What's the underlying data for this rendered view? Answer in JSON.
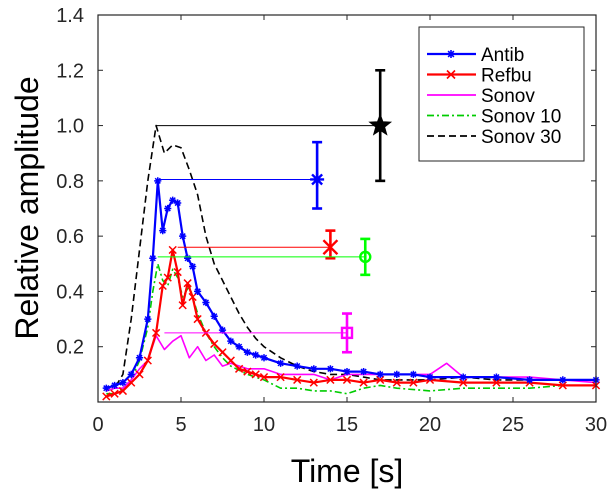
{
  "chart_data": {
    "type": "line",
    "xlabel": "Time [s]",
    "ylabel": "Relative amplitude",
    "xlim": [
      0,
      30
    ],
    "ylim": [
      0,
      1.4
    ],
    "xticks": [
      0,
      5,
      10,
      15,
      20,
      25,
      30
    ],
    "yticks": [
      0.2,
      0.4,
      0.6,
      0.8,
      1.0,
      1.2,
      1.4
    ],
    "xtick_labels": [
      "0",
      "5",
      "10",
      "15",
      "20",
      "25",
      "30"
    ],
    "ytick_labels": [
      "0.2",
      "0.4",
      "0.6",
      "0.8",
      "1.0",
      "1.2",
      "1.4"
    ],
    "grid": false,
    "legend_position": "top-right",
    "series": [
      {
        "name": "Antib",
        "color": "#0000ff",
        "style": "solid",
        "marker": "asterisk",
        "x": [
          0.5,
          1.0,
          1.5,
          2.0,
          2.5,
          3.0,
          3.3,
          3.6,
          3.9,
          4.2,
          4.5,
          4.8,
          5.1,
          5.4,
          5.7,
          6.0,
          6.5,
          7.0,
          7.5,
          8.0,
          8.5,
          9.0,
          9.5,
          10,
          11,
          12,
          13,
          14,
          15,
          16,
          17,
          18,
          19,
          20,
          22,
          24,
          26,
          28,
          30
        ],
        "y": [
          0.05,
          0.06,
          0.07,
          0.1,
          0.16,
          0.3,
          0.52,
          0.8,
          0.62,
          0.7,
          0.73,
          0.72,
          0.6,
          0.52,
          0.49,
          0.4,
          0.36,
          0.31,
          0.26,
          0.22,
          0.2,
          0.18,
          0.17,
          0.16,
          0.14,
          0.13,
          0.12,
          0.12,
          0.11,
          0.11,
          0.1,
          0.1,
          0.1,
          0.09,
          0.09,
          0.09,
          0.08,
          0.08,
          0.08
        ]
      },
      {
        "name": "Refbu",
        "color": "#ff0000",
        "style": "solid",
        "marker": "x",
        "x": [
          0.5,
          1.0,
          1.5,
          2.0,
          2.5,
          3.0,
          3.5,
          3.9,
          4.2,
          4.5,
          4.8,
          5.1,
          5.4,
          5.7,
          6.0,
          6.5,
          7.0,
          7.5,
          8.0,
          8.5,
          9.0,
          9.5,
          10,
          11,
          12,
          13,
          14,
          15,
          16,
          17,
          18,
          19,
          20,
          22,
          24,
          26,
          28,
          30
        ],
        "y": [
          0.02,
          0.03,
          0.04,
          0.07,
          0.1,
          0.15,
          0.25,
          0.42,
          0.45,
          0.55,
          0.47,
          0.35,
          0.43,
          0.38,
          0.3,
          0.25,
          0.21,
          0.18,
          0.15,
          0.12,
          0.11,
          0.1,
          0.09,
          0.09,
          0.08,
          0.07,
          0.08,
          0.08,
          0.07,
          0.08,
          0.07,
          0.07,
          0.08,
          0.07,
          0.07,
          0.07,
          0.06,
          0.06
        ]
      },
      {
        "name": "Sonov",
        "color": "#ff00ff",
        "style": "solid",
        "marker": "none",
        "x": [
          0.5,
          1.0,
          1.5,
          2.0,
          2.5,
          3.0,
          3.5,
          4.0,
          4.5,
          5.0,
          5.5,
          6.0,
          6.5,
          7.0,
          7.5,
          8.0,
          9.0,
          10,
          11,
          12,
          13,
          14,
          15,
          16,
          17,
          18,
          19,
          20,
          21,
          22,
          24,
          26,
          28,
          30
        ],
        "y": [
          0.04,
          0.05,
          0.05,
          0.08,
          0.12,
          0.15,
          0.24,
          0.19,
          0.22,
          0.24,
          0.16,
          0.2,
          0.15,
          0.17,
          0.13,
          0.14,
          0.12,
          0.12,
          0.1,
          0.1,
          0.1,
          0.08,
          0.1,
          0.1,
          0.1,
          0.1,
          0.1,
          0.1,
          0.14,
          0.09,
          0.09,
          0.09,
          0.08,
          0.07
        ]
      },
      {
        "name": "Sonov 10",
        "color": "#00cc00",
        "style": "dashdot",
        "marker": "none",
        "x": [
          0.5,
          1.0,
          1.5,
          2.0,
          2.5,
          3.0,
          3.3,
          3.6,
          3.9,
          4.2,
          4.5,
          4.8,
          5.1,
          5.5,
          6.0,
          6.5,
          7.0,
          7.5,
          8.0,
          9.0,
          10,
          11,
          12,
          13,
          14,
          15,
          16,
          17,
          18,
          20,
          22,
          24,
          26,
          28,
          30
        ],
        "y": [
          0.03,
          0.03,
          0.05,
          0.08,
          0.15,
          0.27,
          0.4,
          0.5,
          0.44,
          0.42,
          0.48,
          0.45,
          0.38,
          0.42,
          0.32,
          0.25,
          0.2,
          0.16,
          0.13,
          0.1,
          0.08,
          0.05,
          0.05,
          0.04,
          0.04,
          0.03,
          0.05,
          0.06,
          0.05,
          0.04,
          0.05,
          0.05,
          0.05,
          0.06,
          0.06
        ]
      },
      {
        "name": "Sonov 30",
        "color": "#000000",
        "style": "dashed",
        "marker": "none",
        "x": [
          0.5,
          1.0,
          1.5,
          2.0,
          2.5,
          3.0,
          3.5,
          4.0,
          4.5,
          5.0,
          5.5,
          6.0,
          6.5,
          7.0,
          7.5,
          8.0,
          8.5,
          9.0,
          9.5,
          10,
          11,
          12,
          13,
          14,
          15,
          16,
          17,
          18,
          19,
          20,
          22,
          24,
          26,
          28,
          30
        ],
        "y": [
          0.04,
          0.05,
          0.1,
          0.3,
          0.55,
          0.8,
          1.0,
          0.9,
          0.93,
          0.92,
          0.84,
          0.75,
          0.6,
          0.5,
          0.44,
          0.38,
          0.32,
          0.27,
          0.23,
          0.2,
          0.16,
          0.13,
          0.11,
          0.1,
          0.1,
          0.09,
          0.08,
          0.08,
          0.08,
          0.08,
          0.09,
          0.08,
          0.08,
          0.08,
          0.08
        ]
      }
    ],
    "annotations": [
      {
        "series": "Antib",
        "peak_x": 3.7,
        "peak_y": 0.805,
        "point_x": 13.2,
        "point_y": 0.805,
        "err_low": 0.7,
        "err_high": 0.94,
        "marker": "asterisk",
        "color": "#0000ff"
      },
      {
        "series": "Refbu",
        "peak_x": 4.8,
        "peak_y": 0.56,
        "point_x": 14.0,
        "point_y": 0.56,
        "err_low": 0.52,
        "err_high": 0.62,
        "marker": "x",
        "color": "#ff0000"
      },
      {
        "series": "Sonov",
        "peak_x": 4.0,
        "peak_y": 0.25,
        "point_x": 15.0,
        "point_y": 0.25,
        "err_low": 0.18,
        "err_high": 0.32,
        "marker": "square",
        "color": "#ff00ff"
      },
      {
        "series": "Sonov 10",
        "peak_x": 3.6,
        "peak_y": 0.525,
        "point_x": 16.1,
        "point_y": 0.525,
        "err_low": 0.46,
        "err_high": 0.59,
        "marker": "circle",
        "color": "#00ff00"
      },
      {
        "series": "Sonov 30",
        "peak_x": 3.5,
        "peak_y": 1.0,
        "point_x": 17.0,
        "point_y": 1.0,
        "err_low": 0.8,
        "err_high": 1.2,
        "marker": "star",
        "color": "#000000"
      }
    ]
  }
}
